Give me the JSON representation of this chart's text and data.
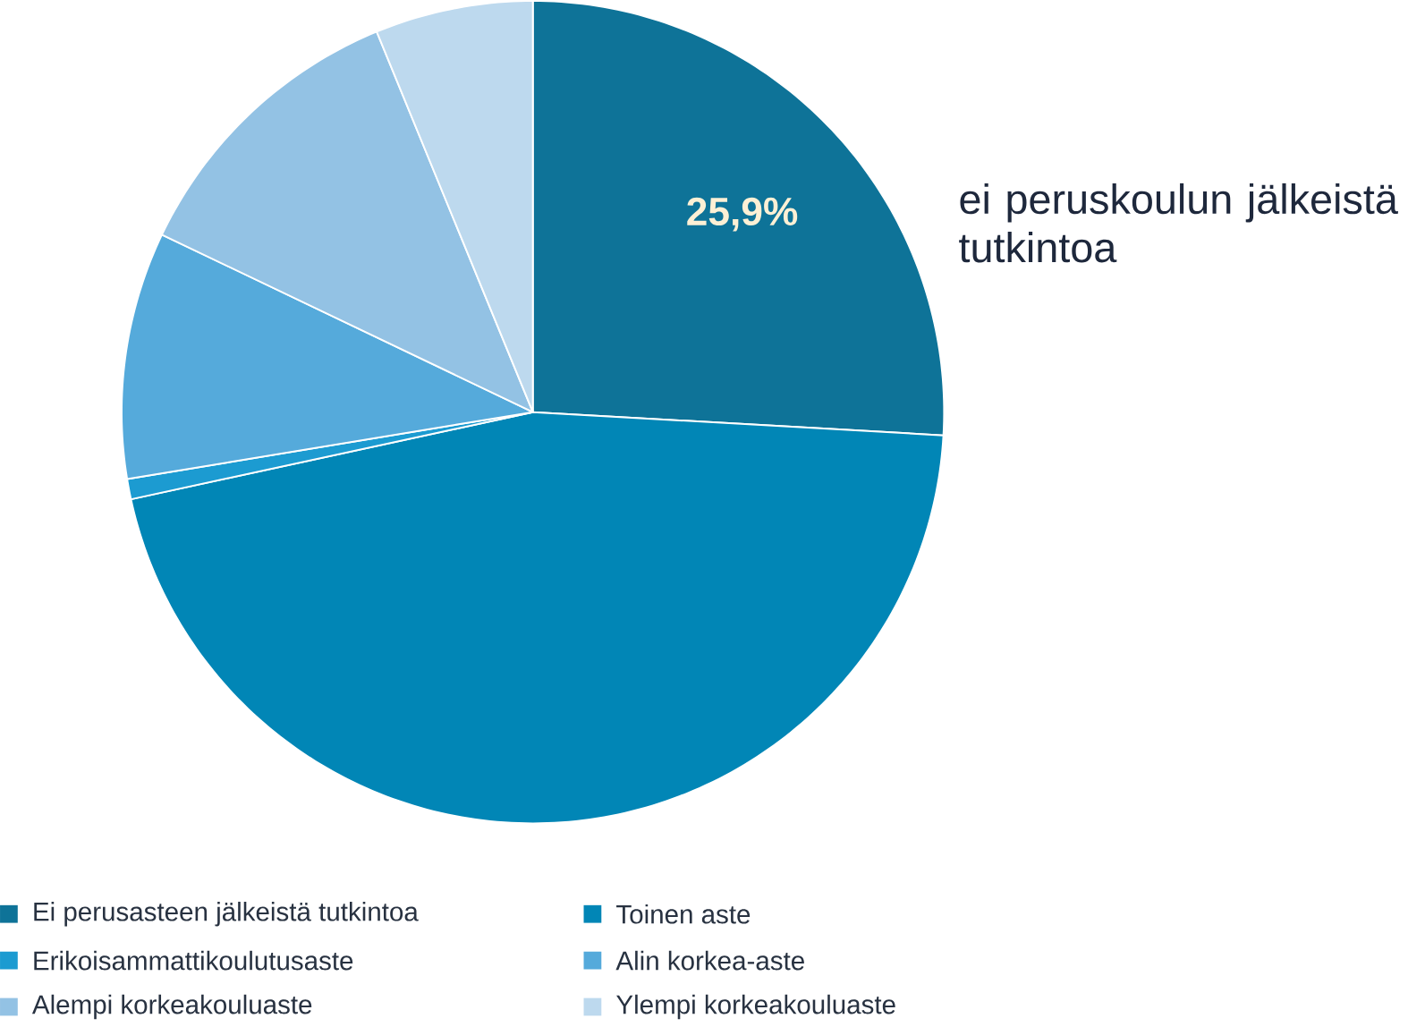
{
  "chart_data": {
    "type": "pie",
    "categories": [
      "Ei perusasteen jälkeistä tutkintoa",
      "Toinen aste",
      "Erikoisammattikoulutusaste",
      "Alin korkea-aste",
      "Alempi korkeakouluaste",
      "Ylempi korkeakouluaste"
    ],
    "values": [
      25.9,
      45.7,
      0.8,
      9.7,
      11.7,
      6.2
    ],
    "colors": [
      "#0e7398",
      "#0186b6",
      "#1c9bd1",
      "#55aadb",
      "#93c2e4",
      "#bdd9ee"
    ],
    "value_labels": [
      "25,9%",
      null,
      null,
      null,
      null,
      null
    ],
    "annotations": [
      "ei peruskoulun jälkeistä tutkintoa"
    ],
    "legend": "bottom"
  }
}
